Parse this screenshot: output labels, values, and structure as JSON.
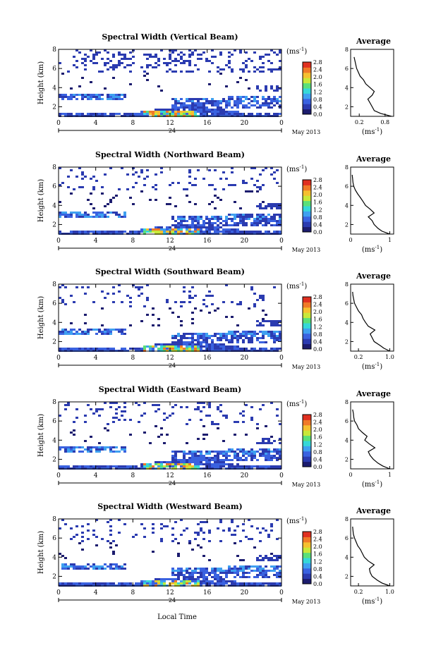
{
  "figure": {
    "xlabel": "Local Time",
    "date_label": "May 2013",
    "day_marker": "24",
    "colorbar_unit": "(ms",
    "colorbar_unit_exp": "-1",
    "colorbar_unit_close": ")",
    "colorbar_ticks": [
      "0.0",
      "0.4",
      "0.8",
      "1.2",
      "1.6",
      "2.0",
      "2.4",
      "2.8"
    ],
    "colormap": [
      "#1c1c6e",
      "#2b3bb0",
      "#3a62e0",
      "#3fa0f0",
      "#36d8d8",
      "#5ae07a",
      "#c8e83a",
      "#f5c030",
      "#f07a28",
      "#e03020"
    ],
    "avg_title": "Average",
    "avg_xunit": "(ms",
    "avg_xunit_exp": "-1",
    "avg_xunit_close": ")"
  },
  "chart_data": [
    {
      "type": "heatmap",
      "title": "Spectral Width (Vertical Beam)",
      "ylabel": "Height (km)",
      "xlim": [
        0,
        24
      ],
      "ylim": [
        1,
        8
      ],
      "xticks": [
        "0",
        "4",
        "8",
        "12",
        "16",
        "20",
        "0"
      ],
      "yticks": [
        "2",
        "4",
        "6",
        "8"
      ],
      "colorbar": [
        0,
        2.8
      ],
      "profile": {
        "xticks": [
          "0.2",
          "0.8"
        ],
        "xlim": [
          0,
          1.0
        ],
        "heights": [
          1,
          1.3,
          1.6,
          2,
          2.4,
          2.8,
          3.2,
          3.6,
          4,
          4.4,
          4.8,
          5.2,
          5.6,
          6,
          6.4,
          6.8,
          7.2
        ],
        "values": [
          0.95,
          0.7,
          0.55,
          0.5,
          0.45,
          0.4,
          0.5,
          0.55,
          0.45,
          0.35,
          0.3,
          0.22,
          0.18,
          0.14,
          0.12,
          0.1,
          0.08
        ]
      }
    },
    {
      "type": "heatmap",
      "title": "Spectral Width (Northward Beam)",
      "ylabel": "Height (km)",
      "xlim": [
        0,
        24
      ],
      "ylim": [
        1,
        8
      ],
      "xticks": [
        "0",
        "4",
        "8",
        "12",
        "16",
        "20",
        "0"
      ],
      "yticks": [
        "2",
        "4",
        "6",
        "8"
      ],
      "colorbar": [
        0,
        2.8
      ],
      "profile": {
        "xticks": [
          "0",
          "1"
        ],
        "xlim": [
          0,
          1.1
        ],
        "heights": [
          1,
          1.3,
          1.6,
          2,
          2.4,
          2.8,
          3.2,
          3.6,
          4,
          4.4,
          4.8,
          5.2,
          5.6,
          6,
          6.4,
          6.8,
          7.2
        ],
        "values": [
          1.0,
          0.8,
          0.7,
          0.6,
          0.55,
          0.45,
          0.6,
          0.5,
          0.38,
          0.32,
          0.25,
          0.18,
          0.12,
          0.08,
          0.06,
          0.05,
          0.04
        ]
      }
    },
    {
      "type": "heatmap",
      "title": "Spectral Width (Southward Beam)",
      "ylabel": "Height (km)",
      "xlim": [
        0,
        24
      ],
      "ylim": [
        1,
        8
      ],
      "xticks": [
        "0",
        "4",
        "8",
        "12",
        "16",
        "20",
        "0"
      ],
      "yticks": [
        "2",
        "4",
        "6",
        "8"
      ],
      "colorbar": [
        0,
        2.8
      ],
      "profile": {
        "xticks": [
          "0.2",
          "1.0"
        ],
        "xlim": [
          0,
          1.1
        ],
        "heights": [
          1,
          1.3,
          1.6,
          2,
          2.4,
          2.8,
          3.2,
          3.6,
          4,
          4.4,
          4.8,
          5.2,
          5.6,
          6,
          6.4,
          6.8,
          7.2
        ],
        "values": [
          1.0,
          0.85,
          0.75,
          0.6,
          0.55,
          0.5,
          0.62,
          0.45,
          0.38,
          0.32,
          0.28,
          0.2,
          0.15,
          0.1,
          0.08,
          0.06,
          0.05
        ]
      }
    },
    {
      "type": "heatmap",
      "title": "Spectral Width (Eastward Beam)",
      "ylabel": "Height (km)",
      "xlim": [
        0,
        24
      ],
      "ylim": [
        1,
        8
      ],
      "xticks": [
        "0",
        "4",
        "8",
        "12",
        "16",
        "20",
        "0"
      ],
      "yticks": [
        "2",
        "4",
        "6",
        "8"
      ],
      "colorbar": [
        0,
        2.8
      ],
      "profile": {
        "xticks": [
          "0",
          "1"
        ],
        "xlim": [
          0,
          1.1
        ],
        "heights": [
          1,
          1.3,
          1.6,
          2,
          2.4,
          2.8,
          3.2,
          3.6,
          4,
          4.4,
          4.8,
          5.2,
          5.6,
          6,
          6.4,
          6.8,
          7.2
        ],
        "values": [
          1.0,
          0.82,
          0.7,
          0.58,
          0.5,
          0.45,
          0.62,
          0.48,
          0.36,
          0.42,
          0.3,
          0.2,
          0.16,
          0.1,
          0.08,
          0.07,
          0.05
        ]
      }
    },
    {
      "type": "heatmap",
      "title": "Spectral Width (Westward Beam)",
      "ylabel": "Height (km)",
      "xlim": [
        0,
        24
      ],
      "ylim": [
        1,
        8
      ],
      "xticks": [
        "0",
        "4",
        "8",
        "12",
        "16",
        "20",
        "0"
      ],
      "yticks": [
        "2",
        "4",
        "6",
        "8"
      ],
      "colorbar": [
        0,
        2.8
      ],
      "profile": {
        "xticks": [
          "0.2",
          "1.0"
        ],
        "xlim": [
          0,
          1.1
        ],
        "heights": [
          1,
          1.3,
          1.6,
          2,
          2.4,
          2.8,
          3.2,
          3.6,
          4,
          4.4,
          4.8,
          5.2,
          5.6,
          6,
          6.4,
          6.8,
          7.2
        ],
        "values": [
          1.0,
          0.8,
          0.68,
          0.55,
          0.5,
          0.48,
          0.6,
          0.45,
          0.35,
          0.3,
          0.25,
          0.18,
          0.14,
          0.1,
          0.07,
          0.06,
          0.05
        ]
      }
    }
  ]
}
